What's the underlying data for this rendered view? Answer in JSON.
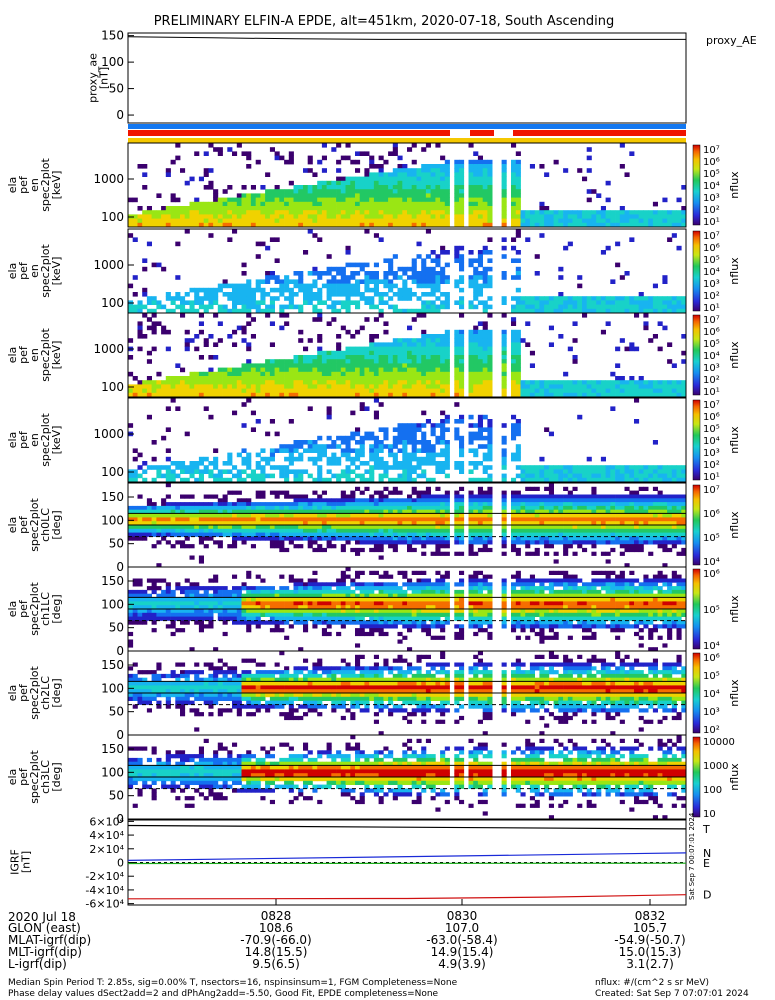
{
  "title": "PRELIMINARY ELFIN-A EPDE, alt=451km, 2020-07-18, South Ascending",
  "colors": {
    "bar_blue": "#1478f0",
    "bar_red": "#f01400",
    "bar_yellow": "#f5c800",
    "trace_black": "#000000",
    "trace_blue": "#1a2ad8",
    "trace_green": "#1aaa1a",
    "trace_red": "#d01010"
  },
  "chart_data": {
    "type": "heatmap",
    "x_ticks": [
      "0828",
      "0830",
      "0832"
    ],
    "proxy_ae": {
      "ylabel": [
        "proxy_ae",
        "[nT]"
      ],
      "yticks": [
        "0",
        "50",
        "100",
        "150"
      ],
      "ylim": [
        -15,
        155
      ],
      "label": "proxy_AE",
      "x": [
        0,
        0.15,
        0.3,
        0.45,
        0.6,
        0.75,
        1.0
      ],
      "y": [
        148,
        146,
        144,
        143,
        143,
        143,
        143
      ]
    },
    "panels": [
      {
        "kind": "energy",
        "ylabel": [
          "ela",
          "pef",
          "en",
          "spec2plot",
          "[keV]"
        ],
        "yticks": [
          "100",
          "1000"
        ],
        "colorbar_ticks": [
          "10⁷",
          "10⁶",
          "10⁵",
          "10⁴",
          "10³",
          "10²",
          "10¹"
        ],
        "colorbar_label": "nflux"
      },
      {
        "kind": "energy",
        "ylabel": [
          "ela",
          "pef",
          "en",
          "spec2plot",
          "[keV]"
        ],
        "yticks": [
          "100",
          "1000"
        ],
        "colorbar_ticks": [
          "10⁷",
          "10⁶",
          "10⁵",
          "10⁴",
          "10³",
          "10²",
          "10¹"
        ],
        "colorbar_label": "nflux"
      },
      {
        "kind": "energy",
        "ylabel": [
          "ela",
          "pef",
          "en",
          "spec2plot",
          "[keV]"
        ],
        "yticks": [
          "100",
          "1000"
        ],
        "colorbar_ticks": [
          "10⁷",
          "10⁶",
          "10⁵",
          "10⁴",
          "10³",
          "10²",
          "10¹"
        ],
        "colorbar_label": "nflux"
      },
      {
        "kind": "energy",
        "ylabel": [
          "ela",
          "pef",
          "en",
          "spec2plot",
          "[keV]"
        ],
        "yticks": [
          "100",
          "1000"
        ],
        "colorbar_ticks": [
          "10⁷",
          "10⁶",
          "10⁵",
          "10⁴",
          "10³",
          "10²",
          "10¹"
        ],
        "colorbar_label": "nflux"
      },
      {
        "kind": "pitch",
        "ylabel": [
          "ela",
          "pef",
          "spec2plot",
          "ch0LC",
          "[deg]"
        ],
        "yticks": [
          "0",
          "50",
          "100",
          "150"
        ],
        "colorbar_ticks": [
          "10⁷",
          "10⁶",
          "10⁵",
          "10⁴"
        ],
        "colorbar_label": "nflux"
      },
      {
        "kind": "pitch",
        "ylabel": [
          "ela",
          "pef",
          "spec2plot",
          "ch1LC",
          "[deg]"
        ],
        "yticks": [
          "0",
          "50",
          "100",
          "150"
        ],
        "colorbar_ticks": [
          "10⁶",
          "10⁵",
          "10⁴"
        ],
        "colorbar_label": "nflux"
      },
      {
        "kind": "pitch",
        "ylabel": [
          "ela",
          "pef",
          "spec2plot",
          "ch2LC",
          "[deg]"
        ],
        "yticks": [
          "0",
          "50",
          "100",
          "150"
        ],
        "colorbar_ticks": [
          "10⁶",
          "10⁵",
          "10⁴",
          "10³",
          "10²"
        ],
        "colorbar_label": "nflux"
      },
      {
        "kind": "pitch",
        "ylabel": [
          "ela",
          "pef",
          "spec2plot",
          "ch3LC",
          "[deg]"
        ],
        "yticks": [
          "0",
          "50",
          "100",
          "150"
        ],
        "colorbar_ticks": [
          "10000",
          "1000",
          "100",
          "10"
        ],
        "colorbar_label": "nflux"
      }
    ],
    "igrf": {
      "ylabel": [
        "IGRF",
        "[nT]"
      ],
      "yticks": [
        "-6×10⁴",
        "-4×10⁴",
        "-2×10⁴",
        "0",
        "2×10⁴",
        "4×10⁴",
        "6×10⁴"
      ],
      "ylim": [
        -62000,
        62000
      ],
      "series": [
        {
          "name": "T",
          "x": [
            0,
            1
          ],
          "y": [
            54000,
            49000
          ]
        },
        {
          "name": "N",
          "x": [
            0,
            1
          ],
          "y": [
            3000,
            14000
          ]
        },
        {
          "name": "E",
          "x": [
            0,
            1
          ],
          "y": [
            -1500,
            -1000
          ]
        },
        {
          "name": "D",
          "x": [
            0,
            0.5,
            0.75,
            1
          ],
          "y": [
            -53000,
            -52500,
            -50500,
            -47000
          ]
        }
      ]
    }
  },
  "footer": {
    "date": "2020 Jul 18",
    "rows": [
      {
        "label": "GLON (east)",
        "values": [
          "108.6",
          "107.0",
          "105.7"
        ]
      },
      {
        "label": "MLAT-igrf(dip)",
        "values": [
          "-70.9(-66.0)",
          "-63.0(-58.4)",
          "-54.9(-50.7)"
        ]
      },
      {
        "label": "MLT-igrf(dip)",
        "values": [
          "14.8(15.5)",
          "14.9(15.4)",
          "15.0(15.3)"
        ]
      },
      {
        "label": "L-igrf(dip)",
        "values": [
          "9.5(6.5)",
          "4.9(3.9)",
          "3.1(2.7)"
        ]
      }
    ],
    "note_left_1": "Median Spin Period T: 2.85s, sig=0.00% T, nsectors=16, nspinsinsum=1, FGM Completeness=None",
    "note_left_2": "Phase delay values dSect2add=2 and dPhAng2add=-5.50, Good Fit, EPDE completeness=None",
    "note_right_1": "nflux: #/(cm^2 s sr MeV)",
    "note_right_2": "Created: Sat Sep  7 07:07:01 2024",
    "side_stamp": "Sat Sep  7 00:07:01 2024"
  }
}
